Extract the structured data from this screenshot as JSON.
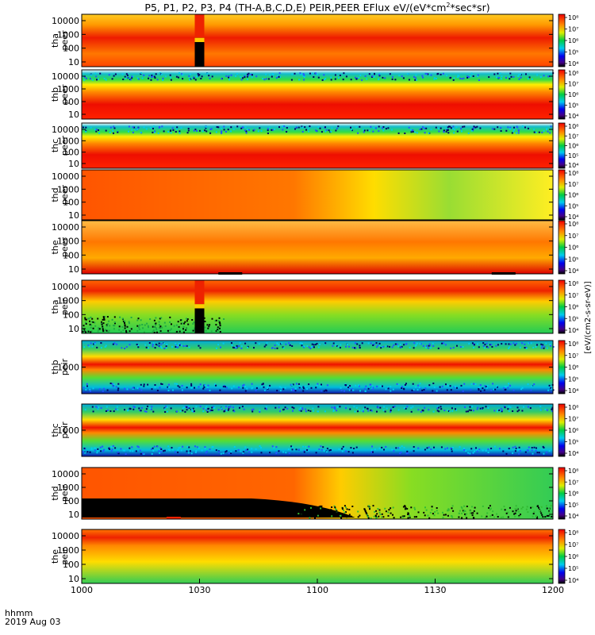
{
  "chart_data": {
    "type": "heatmap",
    "title_text": "P5, P1, P2, P3, P4 (TH-A,B,C,D,E) PEIR,PEER EFlux eV/(eV*cm",
    "title_sup": "2",
    "title_tail": "*sec*sr)",
    "x_label_line1": "hhmm",
    "x_label_line2": "2019 Aug 03",
    "x_ticks": [
      "1000",
      "1030",
      "1100",
      "1130",
      "1200"
    ],
    "x_range": [
      "10:00",
      "12:00"
    ],
    "colorbar_unit": "[eV/(cm2-s-sr-eV)]",
    "panels": [
      {
        "probe": "tha",
        "species": "peer",
        "y_ticks": [
          "10",
          "100",
          "1000",
          "10000"
        ],
        "cb_ticks": [
          "10⁴",
          "10⁵",
          "10⁶",
          "10⁷",
          "10⁸"
        ]
      },
      {
        "probe": "thb",
        "species": "peer",
        "y_ticks": [
          "10",
          "100",
          "1000",
          "10000"
        ],
        "cb_ticks": [
          "10⁴",
          "10⁵",
          "10⁶",
          "10⁷",
          "10⁸"
        ]
      },
      {
        "probe": "thc",
        "species": "peer",
        "y_ticks": [
          "10",
          "100",
          "1000",
          "10000"
        ],
        "cb_ticks": [
          "10⁴",
          "10⁵",
          "10⁶",
          "10⁷",
          "10⁸"
        ]
      },
      {
        "probe": "thd",
        "species": "peer",
        "y_ticks": [
          "10",
          "100",
          "1000",
          "10000"
        ],
        "cb_ticks": [
          "10⁴",
          "10⁵",
          "10⁶",
          "10⁷",
          "10⁸"
        ]
      },
      {
        "probe": "the",
        "species": "peer",
        "y_ticks": [
          "10",
          "100",
          "1000",
          "10000"
        ],
        "cb_ticks": [
          "10⁴",
          "10⁵",
          "10⁶",
          "10⁷",
          "10⁸"
        ]
      },
      {
        "probe": "tha",
        "species": "peir",
        "y_ticks": [
          "10",
          "100",
          "1000",
          "10000"
        ],
        "cb_ticks": [
          "10⁴",
          "10⁵",
          "10⁶",
          "10⁷",
          "10⁸"
        ]
      },
      {
        "probe": "thb",
        "species": "peir",
        "y_ticks": [
          "1000"
        ],
        "cb_ticks": [
          "10⁴",
          "10⁵",
          "10⁶",
          "10⁷",
          "10⁸"
        ]
      },
      {
        "probe": "thc",
        "species": "peir",
        "y_ticks": [
          "1000"
        ],
        "cb_ticks": [
          "10⁴",
          "10⁵",
          "10⁶",
          "10⁷",
          "10⁸"
        ]
      },
      {
        "probe": "thd",
        "species": "peir",
        "y_ticks": [
          "10",
          "100",
          "1000",
          "10000"
        ],
        "cb_ticks": [
          "10⁴",
          "10⁵",
          "10⁶",
          "10⁷",
          "10⁸"
        ]
      },
      {
        "probe": "the",
        "species": "peir",
        "y_ticks": [
          "10",
          "100",
          "1000",
          "10000"
        ],
        "cb_ticks": [
          "10⁴",
          "10⁵",
          "10⁶",
          "10⁷",
          "10⁸"
        ]
      }
    ]
  }
}
